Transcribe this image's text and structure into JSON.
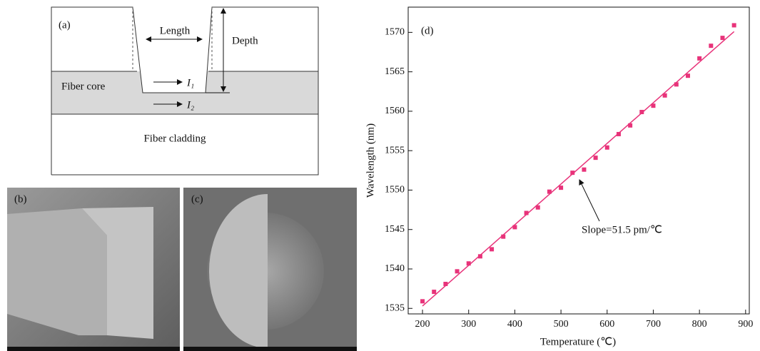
{
  "diagram": {
    "label": "(a)",
    "length": "Length",
    "depth": "Depth",
    "core": "Fiber core",
    "i1": "I₁",
    "i2": "I₂",
    "cladding": "Fiber cladding"
  },
  "images": [
    {
      "label": "(b)"
    },
    {
      "label": "(c)"
    }
  ],
  "chart_data": {
    "type": "scatter",
    "label": "(d)",
    "x_label": "Temperature (℃)",
    "y_label": "Wavelength (nm)",
    "annotation": "Slope=51.5 pm/℃",
    "xlim": [
      169,
      908
    ],
    "ylim": [
      1534.3,
      1573.2
    ],
    "xticks": [
      200,
      300,
      400,
      500,
      600,
      700,
      800,
      900
    ],
    "yticks": [
      1535,
      1540,
      1545,
      1550,
      1555,
      1560,
      1565,
      1570
    ],
    "series": [
      {
        "type": "scatter",
        "color": "#e8337a",
        "x": [
          200,
          225,
          250,
          275,
          300,
          325,
          350,
          375,
          400,
          425,
          450,
          475,
          500,
          525,
          550,
          575,
          600,
          625,
          650,
          675,
          700,
          725,
          750,
          775,
          800,
          825,
          850,
          875
        ],
        "values": [
          1535.9,
          1537.1,
          1538.1,
          1539.7,
          1540.7,
          1541.6,
          1542.5,
          1544.1,
          1545.3,
          1547.1,
          1547.8,
          1549.8,
          1550.3,
          1552.2,
          1552.6,
          1554.1,
          1555.4,
          1557.1,
          1558.2,
          1559.9,
          1560.7,
          1562.0,
          1563.4,
          1564.5,
          1566.7,
          1568.3,
          1569.3,
          1570.9
        ]
      },
      {
        "type": "line",
        "color": "#e8337a",
        "x": [
          200,
          875
        ],
        "values": [
          1535.3,
          1570.1
        ]
      }
    ]
  }
}
